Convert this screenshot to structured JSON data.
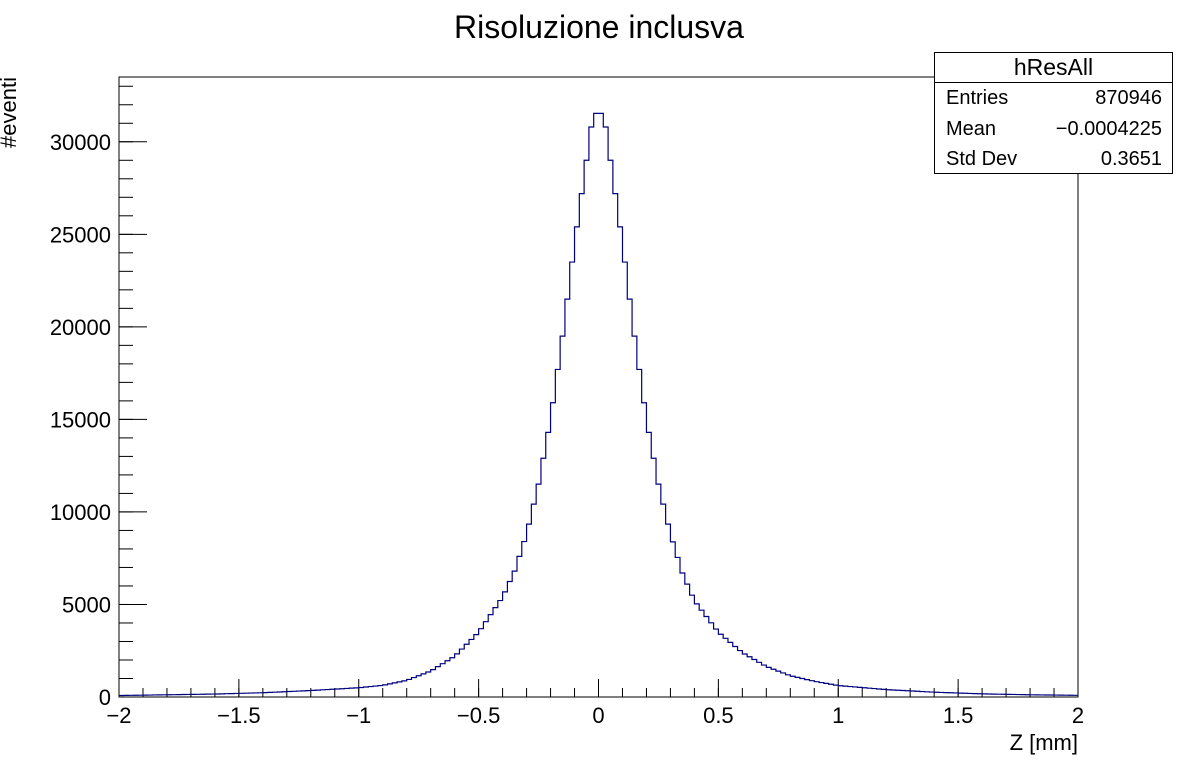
{
  "chart_data": {
    "type": "histogram",
    "title": "Risoluzione inclusva",
    "xlabel": "Z [mm]",
    "ylabel": "#eventi",
    "xlim": [
      -2,
      2
    ],
    "ylim": [
      0,
      33500
    ],
    "xticks": [
      "−2",
      "−1.5",
      "−1",
      "−0.5",
      "0",
      "0.5",
      "1",
      "1.5",
      "2"
    ],
    "yticks": [
      "0",
      "5000",
      "10000",
      "15000",
      "20000",
      "25000",
      "30000"
    ],
    "bins": 200,
    "bin_width": 0.02,
    "color": "#00007f",
    "profile": [
      [
        -2.0,
        80
      ],
      [
        -1.8,
        120
      ],
      [
        -1.6,
        160
      ],
      [
        -1.4,
        230
      ],
      [
        -1.2,
        350
      ],
      [
        -1.0,
        500
      ],
      [
        -0.9,
        630
      ],
      [
        -0.8,
        900
      ],
      [
        -0.7,
        1400
      ],
      [
        -0.6,
        2200
      ],
      [
        -0.5,
        3500
      ],
      [
        -0.4,
        5400
      ],
      [
        -0.35,
        6800
      ],
      [
        -0.3,
        8800
      ],
      [
        -0.25,
        11500
      ],
      [
        -0.2,
        15000
      ],
      [
        -0.15,
        19500
      ],
      [
        -0.1,
        24500
      ],
      [
        -0.05,
        29000
      ],
      [
        -0.03,
        30800
      ],
      [
        0.0,
        31900
      ],
      [
        0.03,
        30800
      ],
      [
        0.05,
        29000
      ],
      [
        0.1,
        24500
      ],
      [
        0.15,
        19500
      ],
      [
        0.2,
        15000
      ],
      [
        0.25,
        11500
      ],
      [
        0.3,
        8800
      ],
      [
        0.35,
        6700
      ],
      [
        0.4,
        5200
      ],
      [
        0.5,
        3500
      ],
      [
        0.6,
        2400
      ],
      [
        0.7,
        1650
      ],
      [
        0.8,
        1150
      ],
      [
        0.9,
        850
      ],
      [
        1.0,
        620
      ],
      [
        1.2,
        400
      ],
      [
        1.4,
        260
      ],
      [
        1.6,
        170
      ],
      [
        1.8,
        120
      ],
      [
        2.0,
        90
      ]
    ],
    "stats_box": {
      "name": "hResAll",
      "rows": [
        {
          "label": "Entries",
          "value": "870946"
        },
        {
          "label": "Mean",
          "value": "−0.0004225"
        },
        {
          "label": "Std Dev",
          "value": "0.3651"
        }
      ]
    }
  }
}
